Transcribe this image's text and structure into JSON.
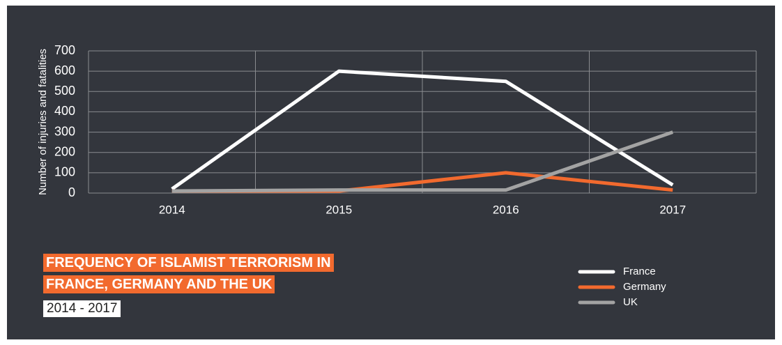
{
  "chart_data": {
    "type": "line",
    "title": "FREQUENCY OF ISLAMIST TERRORISM IN FRANCE, GERMANY AND THE UK",
    "subtitle": "2014 - 2017",
    "y_label": "Number of injuries and fatalities",
    "categories": [
      "2014",
      "2015",
      "2016",
      "2017"
    ],
    "series": [
      {
        "name": "France",
        "color": "#ffffff",
        "values": [
          20,
          600,
          550,
          40
        ]
      },
      {
        "name": "Germany",
        "color": "#f26a2e",
        "values": [
          10,
          10,
          100,
          15
        ]
      },
      {
        "name": "UK",
        "color": "#a3a3a3",
        "values": [
          10,
          15,
          15,
          300
        ]
      }
    ],
    "ylim": [
      0,
      700
    ],
    "yticks": [
      0,
      100,
      200,
      300,
      400,
      500,
      600,
      700
    ],
    "grid": true
  }
}
